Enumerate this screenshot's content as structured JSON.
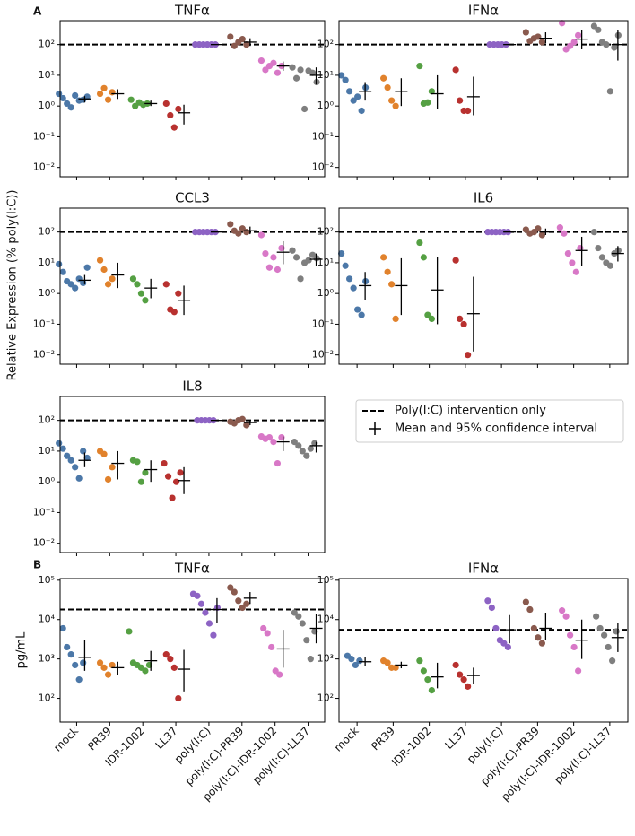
{
  "figure": {
    "panel_labels": [
      "A",
      "B"
    ],
    "ylabel_a": "Relative Expression (% poly(I:C))",
    "ylabel_b": "pg/mL",
    "legend": [
      "Poly(I:C) intervention only",
      "Mean and 95% confidence interval"
    ]
  },
  "chart_data": [
    {
      "type": "strip",
      "title": "TNFα",
      "log_y": true,
      "ylim": [
        0.005,
        600
      ],
      "yticks": [
        {
          "value": 0.01,
          "label": "10⁻²"
        },
        {
          "value": 0.1,
          "label": "10⁻¹"
        },
        {
          "value": 1,
          "label": "10⁰"
        },
        {
          "value": 10,
          "label": "10¹"
        },
        {
          "value": 100,
          "label": "10²"
        }
      ],
      "reference": 100,
      "colors": [
        "#4c78a8",
        "#e1822c",
        "#55a043",
        "#b8312f",
        "#8d63c4",
        "#8a5a4e",
        "#d878c7",
        "#7f7f7f"
      ],
      "groups": [
        {
          "values": [
            2.5,
            1.8,
            1.2,
            0.9,
            2.2,
            1.5,
            1.6,
            2.0
          ],
          "mean": 1.7,
          "ci": [
            1.3,
            2.1
          ]
        },
        {
          "values": [
            2.5,
            3.8,
            1.6,
            2.8
          ],
          "mean": 2.5,
          "ci": [
            1.7,
            3.5
          ]
        },
        {
          "values": [
            1.6,
            1.0,
            1.3,
            1.1,
            1.2
          ],
          "mean": 1.2,
          "ci": [
            1.0,
            1.5
          ]
        },
        {
          "values": [
            1.2,
            0.5,
            0.2,
            0.8
          ],
          "mean": 0.6,
          "ci": [
            0.25,
            1.1
          ]
        },
        {
          "values": [
            100,
            100,
            100,
            100,
            100,
            100
          ],
          "mean": 100,
          "ci": [
            100,
            100
          ]
        },
        {
          "values": [
            180,
            90,
            120,
            150,
            100
          ],
          "mean": 120,
          "ci": [
            90,
            160
          ]
        },
        {
          "values": [
            30,
            15,
            20,
            25,
            12,
            20
          ],
          "mean": 20,
          "ci": [
            14,
            28
          ]
        },
        {
          "values": [
            18,
            8,
            15,
            0.8,
            14,
            12,
            6
          ],
          "mean": 10,
          "ci": [
            5,
            18
          ]
        }
      ]
    },
    {
      "type": "strip",
      "title": "IFNα",
      "log_y": true,
      "ylim": [
        0.005,
        600
      ],
      "yticks": [
        {
          "value": 0.01,
          "label": "10⁻²"
        },
        {
          "value": 0.1,
          "label": "10⁻¹"
        },
        {
          "value": 1,
          "label": "10⁰"
        },
        {
          "value": 10,
          "label": "10¹"
        },
        {
          "value": 100,
          "label": "10²"
        }
      ],
      "reference": 100,
      "colors": [
        "#4c78a8",
        "#e1822c",
        "#55a043",
        "#b8312f",
        "#8d63c4",
        "#8a5a4e",
        "#d878c7",
        "#7f7f7f"
      ],
      "groups": [
        {
          "values": [
            10,
            7,
            3,
            1.5,
            2,
            0.7,
            4
          ],
          "mean": 3,
          "ci": [
            1.5,
            6
          ]
        },
        {
          "values": [
            8,
            4,
            1.5,
            1
          ],
          "mean": 3,
          "ci": [
            1,
            8
          ]
        },
        {
          "values": [
            20,
            1.2,
            1.3,
            3
          ],
          "mean": 2.5,
          "ci": [
            0.8,
            10
          ]
        },
        {
          "values": [
            15,
            1.5,
            0.7,
            0.7
          ],
          "mean": 2,
          "ci": [
            0.5,
            9
          ]
        },
        {
          "values": [
            100,
            100,
            100,
            100,
            100
          ],
          "mean": 100,
          "ci": [
            100,
            100
          ]
        },
        {
          "values": [
            250,
            130,
            160,
            180,
            120
          ],
          "mean": 160,
          "ci": [
            110,
            250
          ]
        },
        {
          "values": [
            500,
            70,
            90,
            120,
            200
          ],
          "mean": 150,
          "ci": [
            70,
            300
          ]
        },
        {
          "values": [
            400,
            300,
            120,
            100,
            3,
            80,
            200
          ],
          "mean": 100,
          "ci": [
            30,
            300
          ]
        }
      ]
    },
    {
      "type": "strip",
      "title": "CCL3",
      "log_y": true,
      "ylim": [
        0.005,
        600
      ],
      "yticks": [
        {
          "value": 0.01,
          "label": "10⁻²"
        },
        {
          "value": 0.1,
          "label": "10⁻¹"
        },
        {
          "value": 1,
          "label": "10⁰"
        },
        {
          "value": 10,
          "label": "10¹"
        },
        {
          "value": 100,
          "label": "10²"
        }
      ],
      "reference": 100,
      "colors": [
        "#4c78a8",
        "#e1822c",
        "#55a043",
        "#b8312f",
        "#8d63c4",
        "#8a5a4e",
        "#d878c7",
        "#7f7f7f"
      ],
      "groups": [
        {
          "values": [
            9,
            5,
            2.5,
            2,
            1.5,
            3,
            2.2,
            7
          ],
          "mean": 2.7,
          "ci": [
            2,
            4
          ]
        },
        {
          "values": [
            12,
            6,
            2,
            3
          ],
          "mean": 4,
          "ci": [
            1.5,
            10
          ]
        },
        {
          "values": [
            3,
            2,
            1,
            0.6
          ],
          "mean": 1.5,
          "ci": [
            0.7,
            3
          ]
        },
        {
          "values": [
            2,
            0.3,
            0.25,
            1
          ],
          "mean": 0.6,
          "ci": [
            0.2,
            1.8
          ]
        },
        {
          "values": [
            100,
            100,
            100,
            100,
            100,
            100
          ],
          "mean": 100,
          "ci": [
            100,
            100
          ]
        },
        {
          "values": [
            180,
            110,
            90,
            130,
            100
          ],
          "mean": 110,
          "ci": [
            85,
            150
          ]
        },
        {
          "values": [
            80,
            20,
            7,
            15,
            6,
            30
          ],
          "mean": 22,
          "ci": [
            9,
            50
          ]
        },
        {
          "values": [
            25,
            15,
            3,
            10,
            12,
            18,
            14
          ],
          "mean": 13,
          "ci": [
            8,
            20
          ]
        }
      ]
    },
    {
      "type": "strip",
      "title": "IL6",
      "log_y": true,
      "ylim": [
        0.005,
        600
      ],
      "yticks": [
        {
          "value": 0.01,
          "label": "10⁻²"
        },
        {
          "value": 0.1,
          "label": "10⁻¹"
        },
        {
          "value": 1,
          "label": "10⁰"
        },
        {
          "value": 10,
          "label": "10¹"
        },
        {
          "value": 100,
          "label": "10²"
        }
      ],
      "reference": 100,
      "colors": [
        "#4c78a8",
        "#e1822c",
        "#55a043",
        "#b8312f",
        "#8d63c4",
        "#8a5a4e",
        "#d878c7",
        "#7f7f7f"
      ],
      "groups": [
        {
          "values": [
            20,
            8,
            3,
            1.5,
            0.3,
            0.2,
            2.5
          ],
          "mean": 1.8,
          "ci": [
            0.6,
            5
          ]
        },
        {
          "values": [
            15,
            5,
            2,
            0.15
          ],
          "mean": 1.8,
          "ci": [
            0.2,
            14
          ]
        },
        {
          "values": [
            45,
            15,
            0.2,
            0.15
          ],
          "mean": 1.3,
          "ci": [
            0.1,
            15
          ]
        },
        {
          "values": [
            12,
            0.15,
            0.1,
            0.01
          ],
          "mean": 0.22,
          "ci": [
            0.013,
            3.5
          ]
        },
        {
          "values": [
            100,
            100,
            100,
            100,
            100,
            100
          ],
          "mean": 100,
          "ci": [
            100,
            100
          ]
        },
        {
          "values": [
            120,
            90,
            100,
            130,
            80
          ],
          "mean": 100,
          "ci": [
            80,
            130
          ]
        },
        {
          "values": [
            140,
            90,
            20,
            10,
            5,
            30
          ],
          "mean": 25,
          "ci": [
            8,
            70
          ]
        },
        {
          "values": [
            100,
            30,
            15,
            10,
            8,
            20,
            25
          ],
          "mean": 20,
          "ci": [
            11,
            35
          ]
        }
      ]
    },
    {
      "type": "strip",
      "title": "IL8",
      "log_y": true,
      "ylim": [
        0.005,
        600
      ],
      "yticks": [
        {
          "value": 0.01,
          "label": "10⁻²"
        },
        {
          "value": 0.1,
          "label": "10⁻¹"
        },
        {
          "value": 1,
          "label": "10⁰"
        },
        {
          "value": 10,
          "label": "10¹"
        },
        {
          "value": 100,
          "label": "10²"
        }
      ],
      "reference": 100,
      "colors": [
        "#4c78a8",
        "#e1822c",
        "#55a043",
        "#b8312f",
        "#8d63c4",
        "#8a5a4e",
        "#d878c7",
        "#7f7f7f"
      ],
      "groups": [
        {
          "values": [
            18,
            12,
            7,
            5,
            3,
            1.3,
            10,
            6
          ],
          "mean": 5,
          "ci": [
            3,
            9
          ]
        },
        {
          "values": [
            10,
            8,
            1.2,
            3
          ],
          "mean": 4,
          "ci": [
            1.2,
            10
          ]
        },
        {
          "values": [
            5,
            4.5,
            1,
            2
          ],
          "mean": 2.5,
          "ci": [
            1,
            5
          ]
        },
        {
          "values": [
            4,
            1.5,
            0.3,
            1,
            2
          ],
          "mean": 1.1,
          "ci": [
            0.4,
            3
          ]
        },
        {
          "values": [
            100,
            100,
            100,
            100,
            100
          ],
          "mean": 100,
          "ci": [
            100,
            100
          ]
        },
        {
          "values": [
            90,
            80,
            100,
            110,
            70
          ],
          "mean": 85,
          "ci": [
            70,
            100
          ]
        },
        {
          "values": [
            30,
            25,
            28,
            20,
            4,
            28
          ],
          "mean": 20,
          "ci": [
            10,
            30
          ]
        },
        {
          "values": [
            20,
            15,
            10,
            7,
            12,
            18
          ],
          "mean": 15,
          "ci": [
            9,
            20
          ]
        }
      ]
    },
    {
      "type": "strip",
      "title": "TNFα",
      "log_y": true,
      "ylim": [
        25,
        110000
      ],
      "yticks": [
        {
          "value": 100,
          "label": "10²"
        },
        {
          "value": 1000,
          "label": "10³"
        },
        {
          "value": 10000,
          "label": "10⁴"
        },
        {
          "value": 100000,
          "label": "10⁵"
        }
      ],
      "reference": 18000,
      "colors": [
        "#4c78a8",
        "#e1822c",
        "#55a043",
        "#b8312f",
        "#8d63c4",
        "#8a5a4e",
        "#d878c7",
        "#7f7f7f"
      ],
      "categories": [
        "mock",
        "PR39",
        "IDR-1002",
        "LL37",
        "poly(I:C)",
        "poly(I:C)-PR39",
        "poly(I:C)-IDR-1002",
        "poly(I:C)-LL37"
      ],
      "groups": [
        {
          "values": [
            6000,
            2000,
            1300,
            700,
            300,
            800
          ],
          "mean": 1100,
          "ci": [
            500,
            3000
          ]
        },
        {
          "values": [
            800,
            600,
            400,
            700
          ],
          "mean": 600,
          "ci": [
            400,
            850
          ]
        },
        {
          "values": [
            5000,
            800,
            700,
            600,
            500,
            700
          ],
          "mean": 900,
          "ci": [
            500,
            1600
          ]
        },
        {
          "values": [
            1300,
            1000,
            600,
            100
          ],
          "mean": 550,
          "ci": [
            150,
            1700
          ]
        },
        {
          "values": [
            45000,
            40000,
            25000,
            15000,
            8000,
            4000,
            20000
          ],
          "mean": 18000,
          "ci": [
            8000,
            35000
          ]
        },
        {
          "values": [
            65000,
            50000,
            30000,
            20000,
            25000
          ],
          "mean": 35000,
          "ci": [
            25000,
            50000
          ]
        },
        {
          "values": [
            6000,
            4500,
            2000,
            500,
            400
          ],
          "mean": 1800,
          "ci": [
            600,
            5500
          ]
        },
        {
          "values": [
            15000,
            12000,
            8000,
            3000,
            1000,
            5000
          ],
          "mean": 6000,
          "ci": [
            2500,
            14000
          ]
        }
      ]
    },
    {
      "type": "strip",
      "title": "IFNα",
      "log_y": true,
      "ylim": [
        25,
        110000
      ],
      "yticks": [
        {
          "value": 100,
          "label": "10²"
        },
        {
          "value": 1000,
          "label": "10³"
        },
        {
          "value": 10000,
          "label": "10⁴"
        },
        {
          "value": 100000,
          "label": "10⁵"
        }
      ],
      "reference": 5500,
      "colors": [
        "#4c78a8",
        "#e1822c",
        "#55a043",
        "#b8312f",
        "#8d63c4",
        "#8a5a4e",
        "#d878c7",
        "#7f7f7f"
      ],
      "categories": [
        "mock",
        "PR39",
        "IDR-1002",
        "LL37",
        "poly(I:C)",
        "poly(I:C)-PR39",
        "poly(I:C)-IDR-1002",
        "poly(I:C)-LL37"
      ],
      "groups": [
        {
          "values": [
            1200,
            1000,
            700,
            900
          ],
          "mean": 850,
          "ci": [
            650,
            1100
          ]
        },
        {
          "values": [
            900,
            800,
            600,
            600
          ],
          "mean": 700,
          "ci": [
            580,
            850
          ]
        },
        {
          "values": [
            900,
            500,
            300,
            160
          ],
          "mean": 350,
          "ci": [
            180,
            800
          ]
        },
        {
          "values": [
            700,
            400,
            300,
            200
          ],
          "mean": 380,
          "ci": [
            230,
            600
          ]
        },
        {
          "values": [
            30000,
            20000,
            6000,
            3000,
            2500,
            2000
          ],
          "mean": 5500,
          "ci": [
            2500,
            13000
          ]
        },
        {
          "values": [
            28000,
            18000,
            6000,
            3500,
            2500
          ],
          "mean": 6000,
          "ci": [
            3000,
            15000
          ]
        },
        {
          "values": [
            17000,
            12000,
            4000,
            2000,
            500
          ],
          "mean": 3000,
          "ci": [
            1000,
            10000
          ]
        },
        {
          "values": [
            12000,
            6000,
            4000,
            2000,
            900,
            5000
          ],
          "mean": 3500,
          "ci": [
            1500,
            8000
          ]
        }
      ]
    }
  ]
}
